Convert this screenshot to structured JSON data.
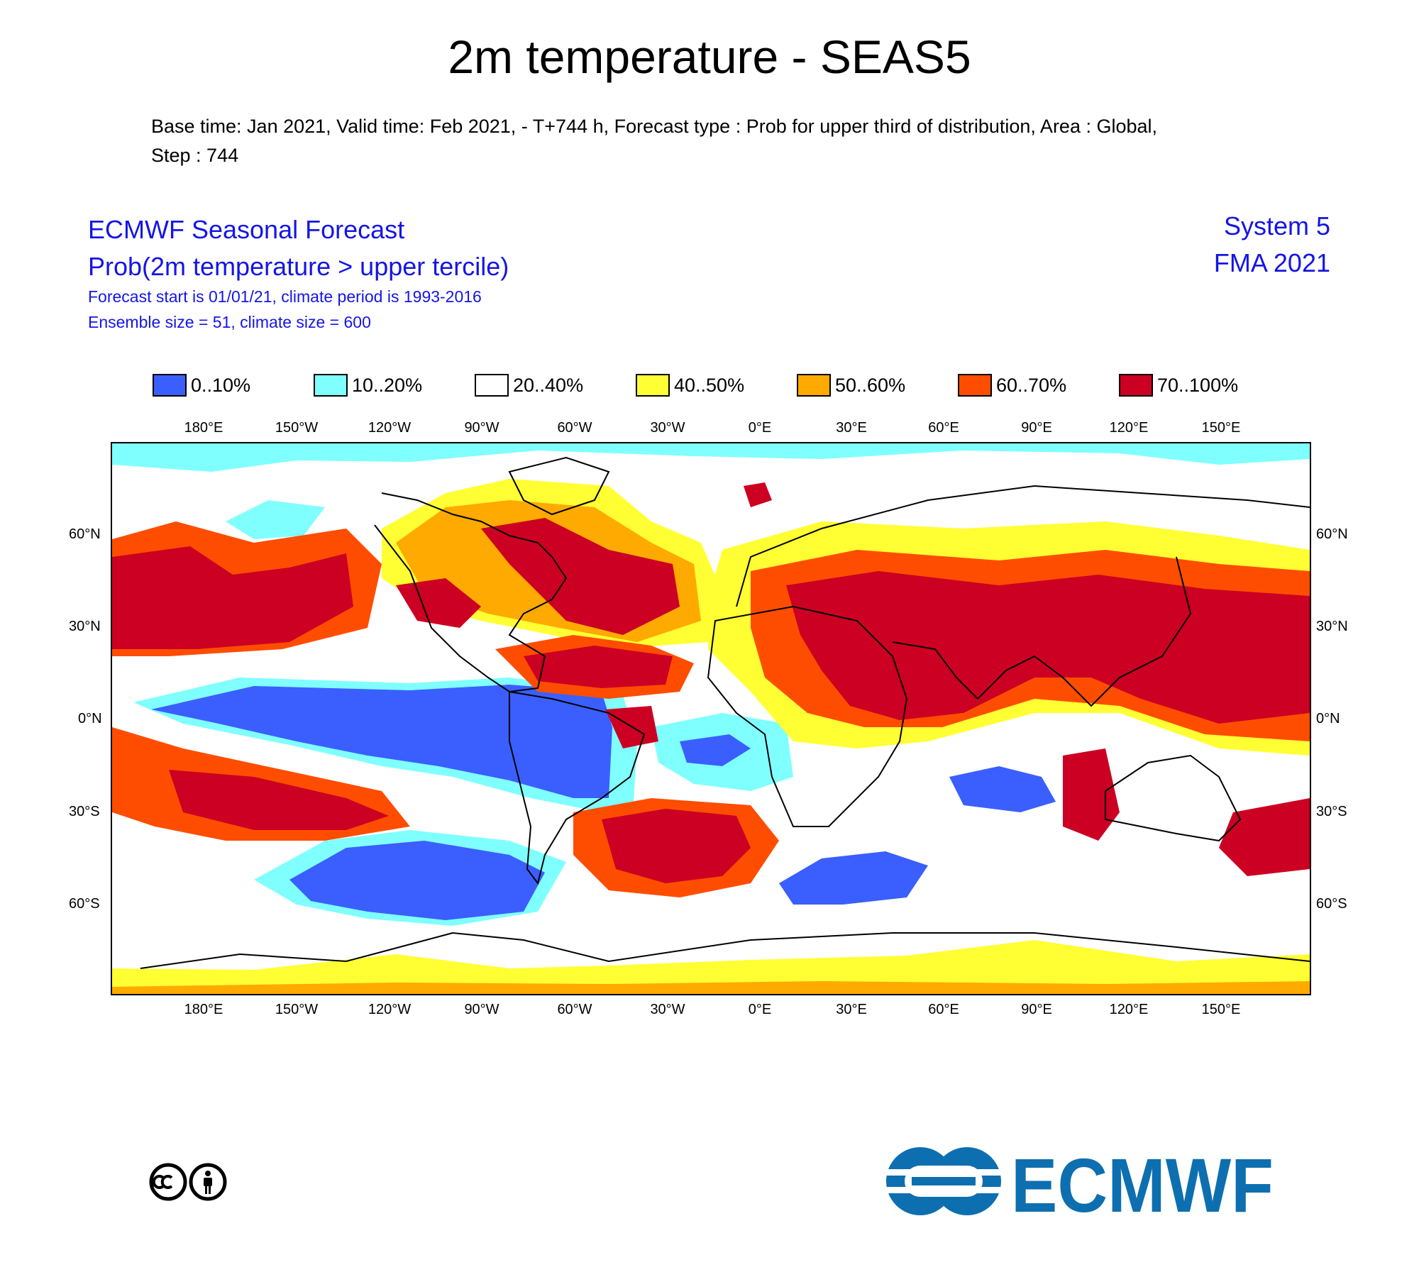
{
  "title": "2m temperature - SEAS5",
  "meta": {
    "line1": "Base time: Jan 2021, Valid time: Feb 2021, - T+744 h, Forecast type : Prob for upper third of distribution, Area : Global,",
    "line2": "Step : 744"
  },
  "header_left": {
    "line1": "ECMWF Seasonal Forecast",
    "line2": "Prob(2m temperature > upper tercile)",
    "line3": "Forecast start is 01/01/21, climate period is 1993-2016",
    "line4": "Ensemble size = 51, climate size = 600"
  },
  "header_right": {
    "line1": "System 5",
    "line2": "FMA 2021"
  },
  "legend": [
    {
      "label": "0..10%",
      "color": "#3a5ffe"
    },
    {
      "label": "10..20%",
      "color": "#80ffff"
    },
    {
      "label": "20..40%",
      "color": "#ffffff"
    },
    {
      "label": "40..50%",
      "color": "#ffff33"
    },
    {
      "label": "50..60%",
      "color": "#ffaa00"
    },
    {
      "label": "60..70%",
      "color": "#ff4d00"
    },
    {
      "label": "70..100%",
      "color": "#cc0022"
    }
  ],
  "lon_labels": [
    "180°E",
    "150°W",
    "120°W",
    "90°W",
    "60°W",
    "30°W",
    "0°E",
    "30°E",
    "60°E",
    "90°E",
    "120°E",
    "150°E"
  ],
  "lat_labels": [
    "60°N",
    "30°N",
    "0°N",
    "30°S",
    "60°S"
  ],
  "logo": {
    "text": "ECMWF",
    "color": "#0d6faf"
  },
  "license_icon": "cc-by-icon"
}
